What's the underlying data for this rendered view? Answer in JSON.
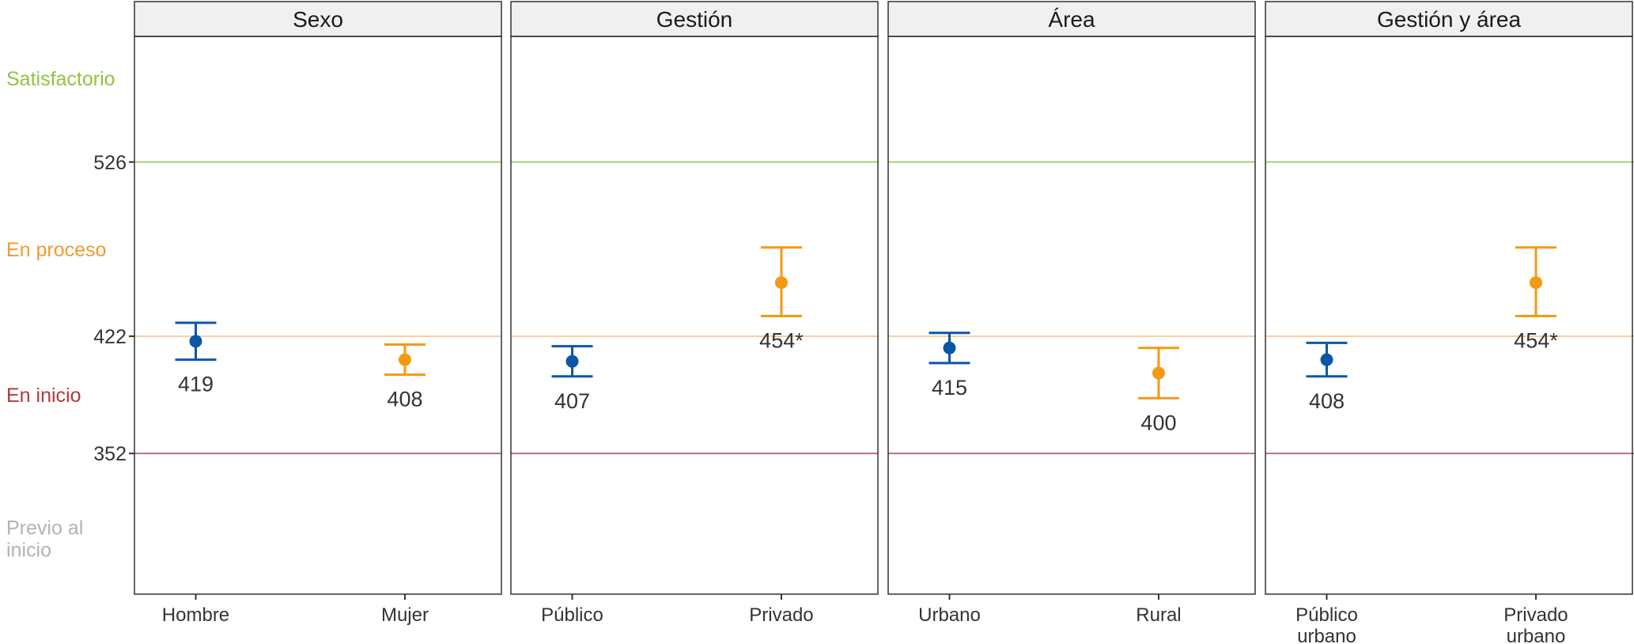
{
  "chart_data": {
    "type": "scatter",
    "description_note": "",
    "panels": [
      {
        "title": "Sexo",
        "points": [
          {
            "category": [
              "Hombre"
            ],
            "value": 419,
            "label": "419",
            "ci": [
              408,
              430
            ],
            "color": "#0b57a6"
          },
          {
            "category": [
              "Mujer"
            ],
            "value": 408,
            "label": "408",
            "ci": [
              399,
              417
            ],
            "color": "#f39a12"
          }
        ]
      },
      {
        "title": "Gestión",
        "points": [
          {
            "category": [
              "Público"
            ],
            "value": 407,
            "label": "407",
            "ci": [
              398,
              416
            ],
            "color": "#0b57a6"
          },
          {
            "category": [
              "Privado"
            ],
            "value": 454,
            "label": "454*",
            "ci": [
              434,
              475
            ],
            "color": "#f39a12"
          }
        ]
      },
      {
        "title": "Área",
        "points": [
          {
            "category": [
              "Urbano"
            ],
            "value": 415,
            "label": "415",
            "ci": [
              406,
              424
            ],
            "color": "#0b57a6"
          },
          {
            "category": [
              "Rural"
            ],
            "value": 400,
            "label": "400",
            "ci": [
              385,
              415
            ],
            "color": "#f39a12"
          }
        ]
      },
      {
        "title": "Gestión y área",
        "points": [
          {
            "category": [
              "Público",
              "urbano"
            ],
            "value": 408,
            "label": "408",
            "ci": [
              398,
              418
            ],
            "color": "#0b57a6"
          },
          {
            "category": [
              "Privado",
              "urbano"
            ],
            "value": 454,
            "label": "454*",
            "ci": [
              434,
              475
            ],
            "color": "#f39a12"
          }
        ]
      }
    ],
    "y_ticks": [
      352,
      422,
      526
    ],
    "ylim": [
      268,
      601
    ],
    "reference_lines": [
      {
        "value": 526,
        "color": "#a6d17a"
      },
      {
        "value": 422,
        "color": "#f6cfa0"
      },
      {
        "value": 352,
        "color": "#b5737a"
      }
    ],
    "levels": [
      {
        "label_lines": [
          "Satisfactorio"
        ],
        "y": 576,
        "color": "#8cc63f"
      },
      {
        "label_lines": [
          "En proceso"
        ],
        "y": 474,
        "color": "#f39a2e"
      },
      {
        "label_lines": [
          "En inicio"
        ],
        "y": 387,
        "color": "#b03a3a"
      },
      {
        "label_lines": [
          "Previo al",
          "inicio"
        ],
        "y": 308,
        "color": "#b3b3b3"
      }
    ],
    "grid": false,
    "legend": "none"
  }
}
